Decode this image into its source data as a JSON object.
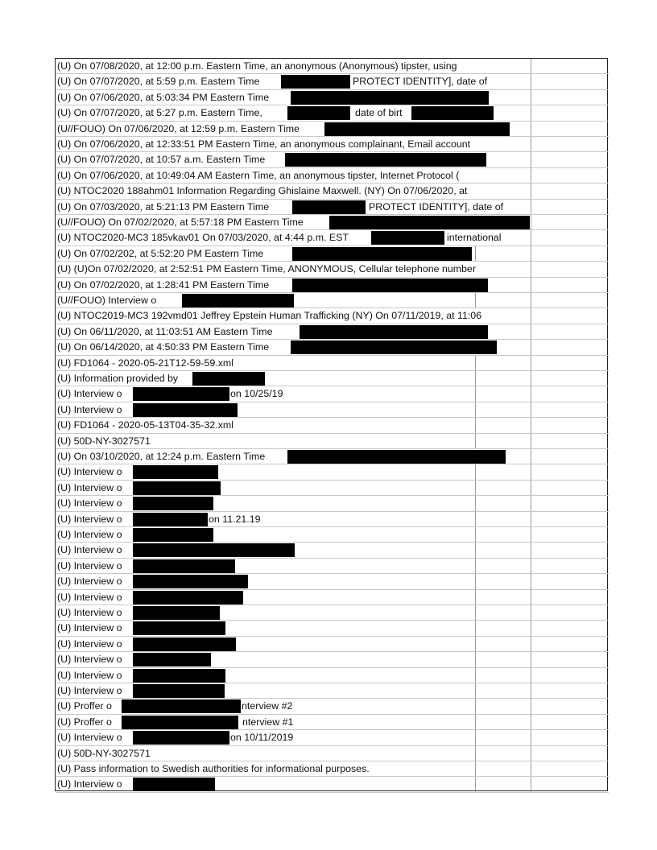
{
  "document": {
    "rows": [
      {
        "segments": [
          "(U) On 07/08/2020, at 12:00 p.m. Eastern Time, an anonymous (Anonymous) tipster, using"
        ]
      },
      {
        "segments": [
          "(U) On 07/07/2020, at 5:59 p.m. Eastern Time",
          "PROTECT IDENTITY], date of"
        ]
      },
      {
        "segments": [
          "(U) On 07/06/2020, at 5:03:34 PM Eastern Time"
        ]
      },
      {
        "segments": [
          "(U) On 07/07/2020, at 5:27 p.m. Eastern Time,",
          "date of birt"
        ]
      },
      {
        "segments": [
          "(U//FOUO) On 07/06/2020, at 12:59 p.m. Eastern Time"
        ]
      },
      {
        "segments": [
          "(U) On 07/06/2020, at 12:33:51 PM Eastern Time, an anonymous complainant, Email account"
        ]
      },
      {
        "segments": [
          "(U) On 07/07/2020, at 10:57 a.m. Eastern Time"
        ]
      },
      {
        "segments": [
          "(U) On 07/06/2020, at 10:49:04 AM Eastern Time, an anonymous tipster, Internet Protocol ("
        ]
      },
      {
        "segments": [
          "(U) NTOC2020 188ahm01   Information Regarding Ghislaine Maxwell.  (NY) On 07/06/2020, at"
        ]
      },
      {
        "segments": [
          "(U) On 07/03/2020, at 5:21:13 PM Eastern Time",
          "PROTECT IDENTITY], date of"
        ]
      },
      {
        "segments": [
          "(U//FOUO) On 07/02/2020, at 5:57:18 PM Eastern Time"
        ]
      },
      {
        "segments": [
          "(U) NTOC2020-MC3 185vkav01 On 07/03/2020, at 4:44 p.m. EST",
          "international"
        ]
      },
      {
        "segments": [
          "(U) On 07/02/202, at 5:52:20 PM Eastern Time"
        ]
      },
      {
        "segments": [
          "(U) (U)On 07/02/2020, at 2:52:51 PM Eastern Time, ANONYMOUS, Cellular telephone number"
        ]
      },
      {
        "segments": [
          "(U) On 07/02/2020, at 1:28:41 PM Eastern Time"
        ]
      },
      {
        "segments": [
          "(U//FOUO) Interview o"
        ]
      },
      {
        "segments": [
          "(U) NTOC2019-MC3 192vmd01 Jeffrey Epstein Human Trafficking (NY) On 07/11/2019, at 11:06"
        ]
      },
      {
        "segments": [
          "(U) On 06/11/2020, at 11:03:51 AM Eastern Time"
        ]
      },
      {
        "segments": [
          "(U) On 06/14/2020, at 4:50:33 PM Eastern Time"
        ]
      },
      {
        "segments": [
          "(U) FD1064 - 2020-05-21T12-59-59.xml"
        ]
      },
      {
        "segments": [
          "(U) Information provided by"
        ]
      },
      {
        "segments": [
          "(U) Interview o",
          "on 10/25/19"
        ]
      },
      {
        "segments": [
          "(U) Interview o"
        ]
      },
      {
        "segments": [
          "(U) FD1064 - 2020-05-13T04-35-32.xml"
        ]
      },
      {
        "segments": [
          "(U) 50D-NY-3027571"
        ]
      },
      {
        "segments": [
          "(U) On 03/10/2020, at 12:24 p.m. Eastern Time"
        ]
      },
      {
        "segments": [
          "(U) Interview o"
        ]
      },
      {
        "segments": [
          "(U) Interview o"
        ]
      },
      {
        "segments": [
          "(U) Interview o"
        ]
      },
      {
        "segments": [
          "(U) Interview o",
          "on 11.21.19"
        ]
      },
      {
        "segments": [
          "(U) Interview o"
        ]
      },
      {
        "segments": [
          "(U) Interview o"
        ]
      },
      {
        "segments": [
          "(U) Interview o"
        ]
      },
      {
        "segments": [
          "(U) Interview o"
        ]
      },
      {
        "segments": [
          "(U) Interview o"
        ]
      },
      {
        "segments": [
          "(U) Interview o"
        ]
      },
      {
        "segments": [
          "(U) Interview o"
        ]
      },
      {
        "segments": [
          "(U) Interview o"
        ]
      },
      {
        "segments": [
          "(U) Interview o"
        ]
      },
      {
        "segments": [
          "(U) Interview o"
        ]
      },
      {
        "segments": [
          "(U) Interview o"
        ]
      },
      {
        "segments": [
          "(U) Proffer o",
          "nterview #2"
        ]
      },
      {
        "segments": [
          "(U) Proffer o",
          "nterview #1"
        ]
      },
      {
        "segments": [
          "(U) Interview o",
          "on 10/11/2019"
        ]
      },
      {
        "segments": [
          "(U) 50D-NY-3027571"
        ]
      },
      {
        "segments": [
          "(U) Pass information to Swedish authorities for informational purposes."
        ]
      },
      {
        "segments": [
          "(U) Interview o"
        ]
      }
    ]
  }
}
